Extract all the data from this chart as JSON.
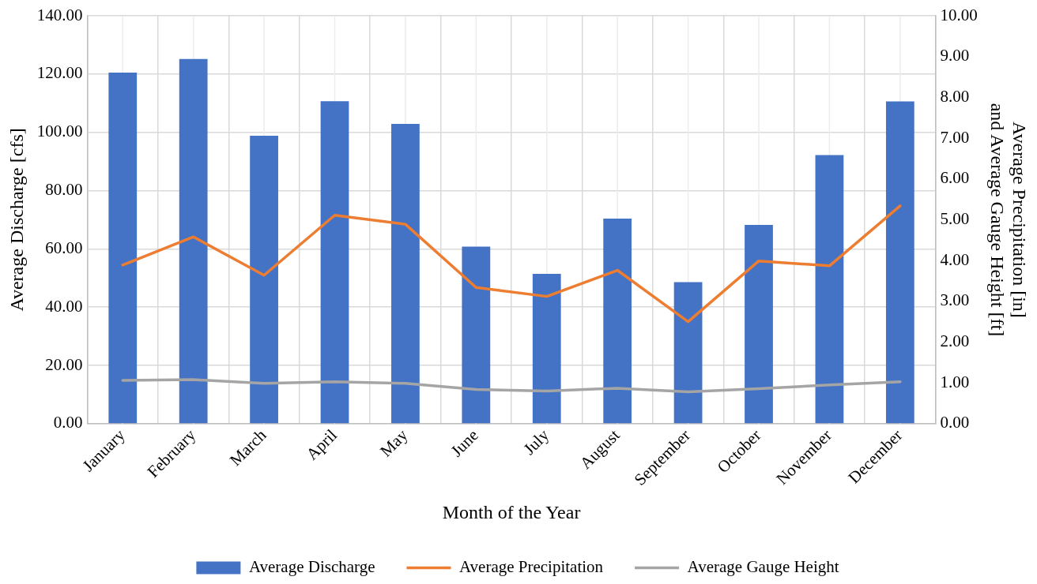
{
  "chart_data": {
    "type": "bar",
    "xlabel": "Month of the Year",
    "ylabel": "Average Discharge [cfs]",
    "y2label": "Average Precipitation [in] and Average Gauge Height [ft]",
    "categories": [
      "January",
      "February",
      "March",
      "April",
      "May",
      "June",
      "July",
      "August",
      "September",
      "October",
      "November",
      "December"
    ],
    "series": [
      {
        "name": "Average Discharge",
        "color": "#4472c4",
        "values": [
          120.5,
          125.2,
          98.8,
          110.7,
          102.9,
          60.8,
          51.4,
          70.4,
          48.6,
          68.2,
          92.2,
          110.6
        ]
      },
      {
        "name": "Average Precipitation",
        "type": "line",
        "axis": "y2",
        "color": "#ed7d31",
        "values": [
          3.89,
          4.58,
          3.64,
          5.11,
          4.89,
          3.34,
          3.12,
          3.76,
          2.5,
          3.99,
          3.87,
          5.34
        ]
      },
      {
        "name": "Average Gauge Height",
        "type": "line",
        "axis": "y2",
        "color": "#a5a5a5",
        "values": [
          1.06,
          1.08,
          0.99,
          1.03,
          0.99,
          0.84,
          0.8,
          0.87,
          0.78,
          0.86,
          0.95,
          1.03
        ]
      }
    ],
    "ylim": [
      0,
      140
    ],
    "yticks": [
      {
        "value": 0,
        "label": "0.00"
      },
      {
        "value": 20,
        "label": "20.00"
      },
      {
        "value": 40,
        "label": "40.00"
      },
      {
        "value": 60,
        "label": "60.00"
      },
      {
        "value": 80,
        "label": "80.00"
      },
      {
        "value": 100,
        "label": "100.00"
      },
      {
        "value": 120,
        "label": "120.00"
      },
      {
        "value": 140,
        "label": "140.00"
      }
    ],
    "y2lim": [
      0,
      10
    ],
    "y2ticks": [
      {
        "value": 0,
        "label": "0.00"
      },
      {
        "value": 1,
        "label": "1.00"
      },
      {
        "value": 2,
        "label": "2.00"
      },
      {
        "value": 3,
        "label": "3.00"
      },
      {
        "value": 4,
        "label": "4.00"
      },
      {
        "value": 5,
        "label": "5.00"
      },
      {
        "value": 6,
        "label": "6.00"
      },
      {
        "value": 7,
        "label": "7.00"
      },
      {
        "value": 8,
        "label": "8.00"
      },
      {
        "value": 9,
        "label": "9.00"
      },
      {
        "value": 10,
        "label": "10.00"
      }
    ],
    "grid": true,
    "legend": "bottom",
    "line_style": "solid"
  }
}
